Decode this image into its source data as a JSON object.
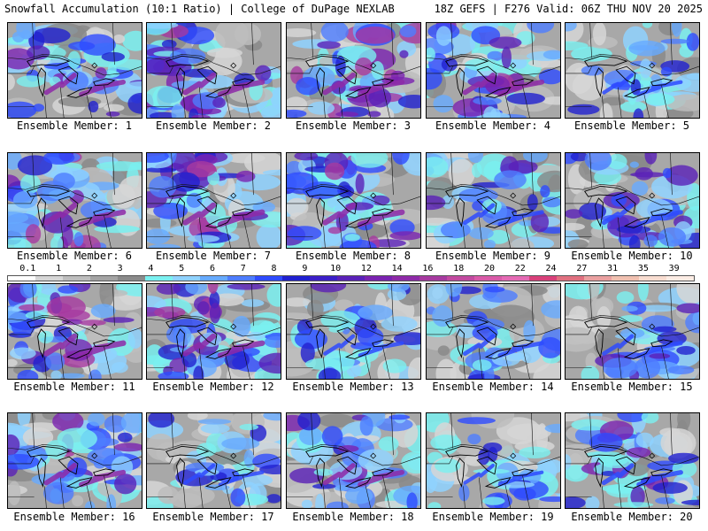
{
  "header": {
    "title": "Snowfall Accumulation (10:1 Ratio) | College of DuPage NEXLAB",
    "run_info": "18Z GEFS | F276 Valid: 06Z THU NOV 20 2025"
  },
  "members": [
    {
      "label": "Ensemble Member: 1",
      "intensity": 0.65,
      "west_heavy": 0.35
    },
    {
      "label": "Ensemble Member: 2",
      "intensity": 0.8,
      "west_heavy": 0.9
    },
    {
      "label": "Ensemble Member: 3",
      "intensity": 0.75,
      "west_heavy": 0.3
    },
    {
      "label": "Ensemble Member: 4",
      "intensity": 0.7,
      "west_heavy": 0.45
    },
    {
      "label": "Ensemble Member: 5",
      "intensity": 0.35,
      "west_heavy": 0.2
    },
    {
      "label": "Ensemble Member: 6",
      "intensity": 0.8,
      "west_heavy": 0.7
    },
    {
      "label": "Ensemble Member: 7",
      "intensity": 0.85,
      "west_heavy": 0.75
    },
    {
      "label": "Ensemble Member: 8",
      "intensity": 0.85,
      "west_heavy": 0.8
    },
    {
      "label": "Ensemble Member: 9",
      "intensity": 0.5,
      "west_heavy": 0.35
    },
    {
      "label": "Ensemble Member: 10",
      "intensity": 0.55,
      "west_heavy": 0.3
    },
    {
      "label": "Ensemble Member: 11",
      "intensity": 0.9,
      "west_heavy": 0.9
    },
    {
      "label": "Ensemble Member: 12",
      "intensity": 0.85,
      "west_heavy": 0.75
    },
    {
      "label": "Ensemble Member: 13",
      "intensity": 0.4,
      "west_heavy": 0.4
    },
    {
      "label": "Ensemble Member: 14",
      "intensity": 0.5,
      "west_heavy": 0.5
    },
    {
      "label": "Ensemble Member: 15",
      "intensity": 0.45,
      "west_heavy": 0.25
    },
    {
      "label": "Ensemble Member: 16",
      "intensity": 0.7,
      "west_heavy": 0.4
    },
    {
      "label": "Ensemble Member: 17",
      "intensity": 0.35,
      "west_heavy": 0.15
    },
    {
      "label": "Ensemble Member: 18",
      "intensity": 0.65,
      "west_heavy": 0.45
    },
    {
      "label": "Ensemble Member: 19",
      "intensity": 0.3,
      "west_heavy": 0.2
    },
    {
      "label": "Ensemble Member: 20",
      "intensity": 0.6,
      "west_heavy": 0.5
    }
  ],
  "legend": {
    "ticks": [
      "0.1",
      "1",
      "2",
      "3",
      "4",
      "5",
      "6",
      "7",
      "8",
      "9",
      "10",
      "12",
      "14",
      "16",
      "18",
      "20",
      "22",
      "24",
      "27",
      "31",
      "35",
      "39"
    ],
    "colors": [
      "#ffffff",
      "#d6d6d6",
      "#bdbdbd",
      "#a3a3a3",
      "#8a8a8a",
      "#7af0f0",
      "#8fd2ff",
      "#66aaff",
      "#4d7dff",
      "#2e4bff",
      "#2020d0",
      "#3b1fc8",
      "#5a21b8",
      "#7a23b0",
      "#8e2aa8",
      "#a63aa0",
      "#c24aa0",
      "#d95aa8",
      "#e46ab4",
      "#d8407a",
      "#e07080",
      "#eaa0a0",
      "#f0c0b0",
      "#f8dcd0",
      "#fcece4"
    ]
  }
}
